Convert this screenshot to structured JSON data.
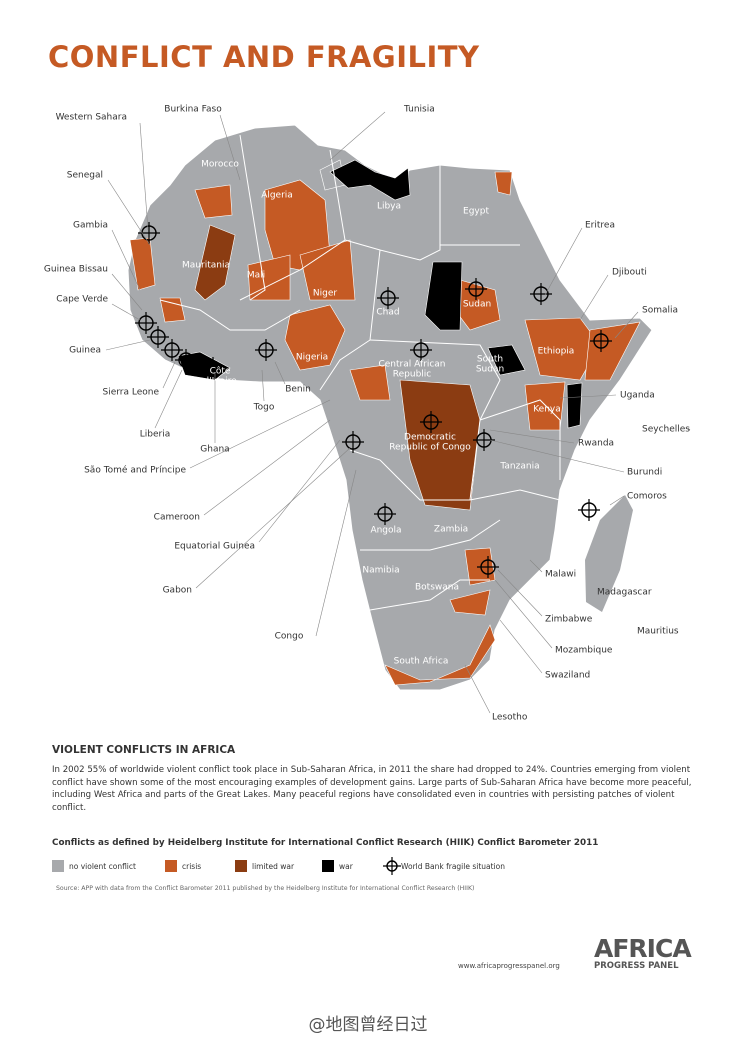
{
  "header": {
    "title": "CONFLICT AND FRAGILITY"
  },
  "map": {
    "labels": [
      {
        "text": "Western Sahara"
      },
      {
        "text": "Burkina Faso"
      },
      {
        "text": "Tunisia"
      },
      {
        "text": "Senegal"
      },
      {
        "text": "Gambia"
      },
      {
        "text": "Guinea Bissau"
      },
      {
        "text": "Cape Verde"
      },
      {
        "text": "Guinea"
      },
      {
        "text": "Sierra Leone"
      },
      {
        "text": "Liberia"
      },
      {
        "text": "Ghana"
      },
      {
        "text": "Togo"
      },
      {
        "text": "Benin"
      },
      {
        "text": "São Tomé and Príncipe"
      },
      {
        "text": "Cameroon"
      },
      {
        "text": "Equatorial Guinea"
      },
      {
        "text": "Gabon"
      },
      {
        "text": "Congo"
      },
      {
        "text": "Eritrea"
      },
      {
        "text": "Djibouti"
      },
      {
        "text": "Somalia"
      },
      {
        "text": "Uganda"
      },
      {
        "text": "Seychelles"
      },
      {
        "text": "Rwanda"
      },
      {
        "text": "Burundi"
      },
      {
        "text": "Comoros"
      },
      {
        "text": "Malawi"
      },
      {
        "text": "Madagascar"
      },
      {
        "text": "Mauritius"
      },
      {
        "text": "Zimbabwe"
      },
      {
        "text": "Mozambique"
      },
      {
        "text": "Swaziland"
      },
      {
        "text": "Lesotho"
      }
    ],
    "inner_labels": [
      {
        "lines": [
          "Morocco"
        ]
      },
      {
        "lines": [
          "Algeria"
        ]
      },
      {
        "lines": [
          "Libya"
        ]
      },
      {
        "lines": [
          "Egypt"
        ]
      },
      {
        "lines": [
          "Mauritania"
        ]
      },
      {
        "lines": [
          "Mali"
        ]
      },
      {
        "lines": [
          "Niger"
        ]
      },
      {
        "lines": [
          "Chad"
        ]
      },
      {
        "lines": [
          "Sudan"
        ]
      },
      {
        "lines": [
          "Côte",
          "d'Ivoire"
        ]
      },
      {
        "lines": [
          "Nigeria"
        ]
      },
      {
        "lines": [
          "Central African",
          "Republic"
        ]
      },
      {
        "lines": [
          "South",
          "Sudan"
        ]
      },
      {
        "lines": [
          "Ethiopia"
        ]
      },
      {
        "lines": [
          "Kenya"
        ]
      },
      {
        "lines": [
          "Democratic",
          "Republic of Congo"
        ]
      },
      {
        "lines": [
          "Tanzania"
        ]
      },
      {
        "lines": [
          "Angola"
        ]
      },
      {
        "lines": [
          "Zambia"
        ]
      },
      {
        "lines": [
          "Namibia"
        ]
      },
      {
        "lines": [
          "Botswana"
        ]
      },
      {
        "lines": [
          "South Africa"
        ]
      }
    ]
  },
  "section": {
    "title": "VIOLENT CONFLICTS IN AFRICA",
    "body": "In 2002 55% of worldwide violent conflict took place in Sub-Saharan Africa, in 2011 the share had dropped to 24%. Countries emerging from violent conflict have shown some of the most encouraging examples of development gains. Large parts of Sub-Saharan Africa have become more peaceful, including West Africa and parts of the Great Lakes. Many peaceful regions have consolidated even in countries with persisting patches of violent conflict."
  },
  "legend": {
    "title": "Conflicts as defined by Heidelberg Institute for International Conflict Research (HIIK) Conflict Barometer 2011",
    "items": [
      {
        "label": "no violent conflict",
        "color": "#a7a9ac"
      },
      {
        "label": "crisis",
        "color": "#c55a24"
      },
      {
        "label": "limited war",
        "color": "#8b3c12"
      },
      {
        "label": "war",
        "color": "#000000"
      },
      {
        "label": "World Bank fragile situation"
      }
    ]
  },
  "source": "Source: APP with data from the Conflict Barometer 2011 published by the Heidelberg Institute for International Conflict Research (HIIK)",
  "footer": {
    "url": "www.africaprogresspanel.org",
    "logo_top": "AFRICA",
    "logo_bottom": "PROGRESS PANEL"
  },
  "watermark": "@地图曾经日过"
}
